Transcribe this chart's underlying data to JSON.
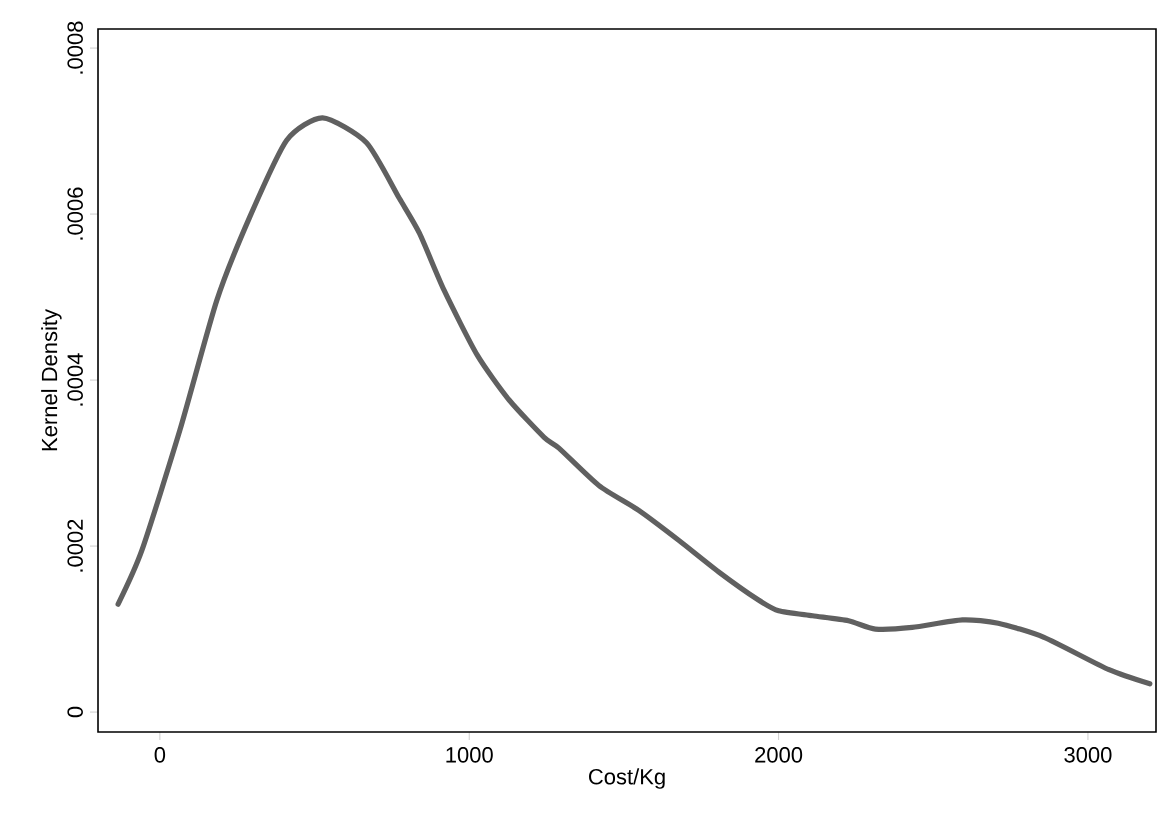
{
  "chart_data": {
    "type": "line",
    "xlabel": "Cost/Kg",
    "ylabel": "Kernel Density",
    "x": [
      -135,
      -58,
      65,
      184,
      290,
      410,
      526,
      668,
      774,
      839,
      919,
      1026,
      1129,
      1242,
      1290,
      1419,
      1548,
      1677,
      1806,
      1935,
      2000,
      2110,
      2226,
      2313,
      2432,
      2594,
      2710,
      2858,
      3068,
      3200
    ],
    "series": [
      {
        "color": "#606060",
        "values": [
          0.00013,
          0.000195,
          0.00034,
          0.000496,
          0.000596,
          0.000689,
          0.000716,
          0.000686,
          0.000619,
          0.000577,
          0.000508,
          0.00043,
          0.000376,
          0.000331,
          0.000318,
          0.000273,
          0.000243,
          0.000207,
          0.000169,
          0.000135,
          0.000122,
          0.000116,
          0.00011,
          0.0001,
          0.000102,
          0.000111,
          0.000107,
          9e-05,
          5.1e-05,
          3.4e-05
        ]
      }
    ],
    "xlim": [
      -200,
      3220
    ],
    "ylim": [
      -2.4e-05,
      0.000823
    ],
    "xticks": [
      0,
      1000,
      2000,
      3000
    ],
    "yticks": [
      {
        "value": 0,
        "label": "0"
      },
      {
        "value": 0.0002,
        "label": ".0002"
      },
      {
        "value": 0.0004,
        "label": ".0004"
      },
      {
        "value": 0.0006,
        "label": ".0006"
      },
      {
        "value": 0.0008,
        "label": ".0008"
      }
    ],
    "grid": false,
    "marker": "none",
    "line_style": "solid"
  }
}
